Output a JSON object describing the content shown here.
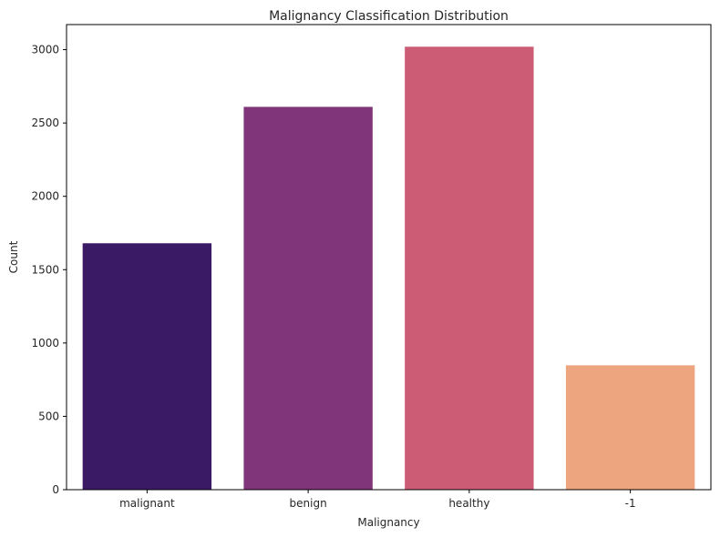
{
  "chart_data": {
    "type": "bar",
    "title": "Malignancy Classification Distribution",
    "xlabel": "Malignancy",
    "ylabel": "Count",
    "categories": [
      "malignant",
      "benign",
      "healthy",
      "-1"
    ],
    "values": [
      1680,
      2610,
      3020,
      848
    ],
    "colors": [
      "#3b1a65",
      "#80357a",
      "#cc5c76",
      "#eda580"
    ],
    "ylim": [
      0,
      3171
    ],
    "yticks": [
      0,
      500,
      1000,
      1500,
      2000,
      2500,
      3000
    ],
    "grid": false
  }
}
